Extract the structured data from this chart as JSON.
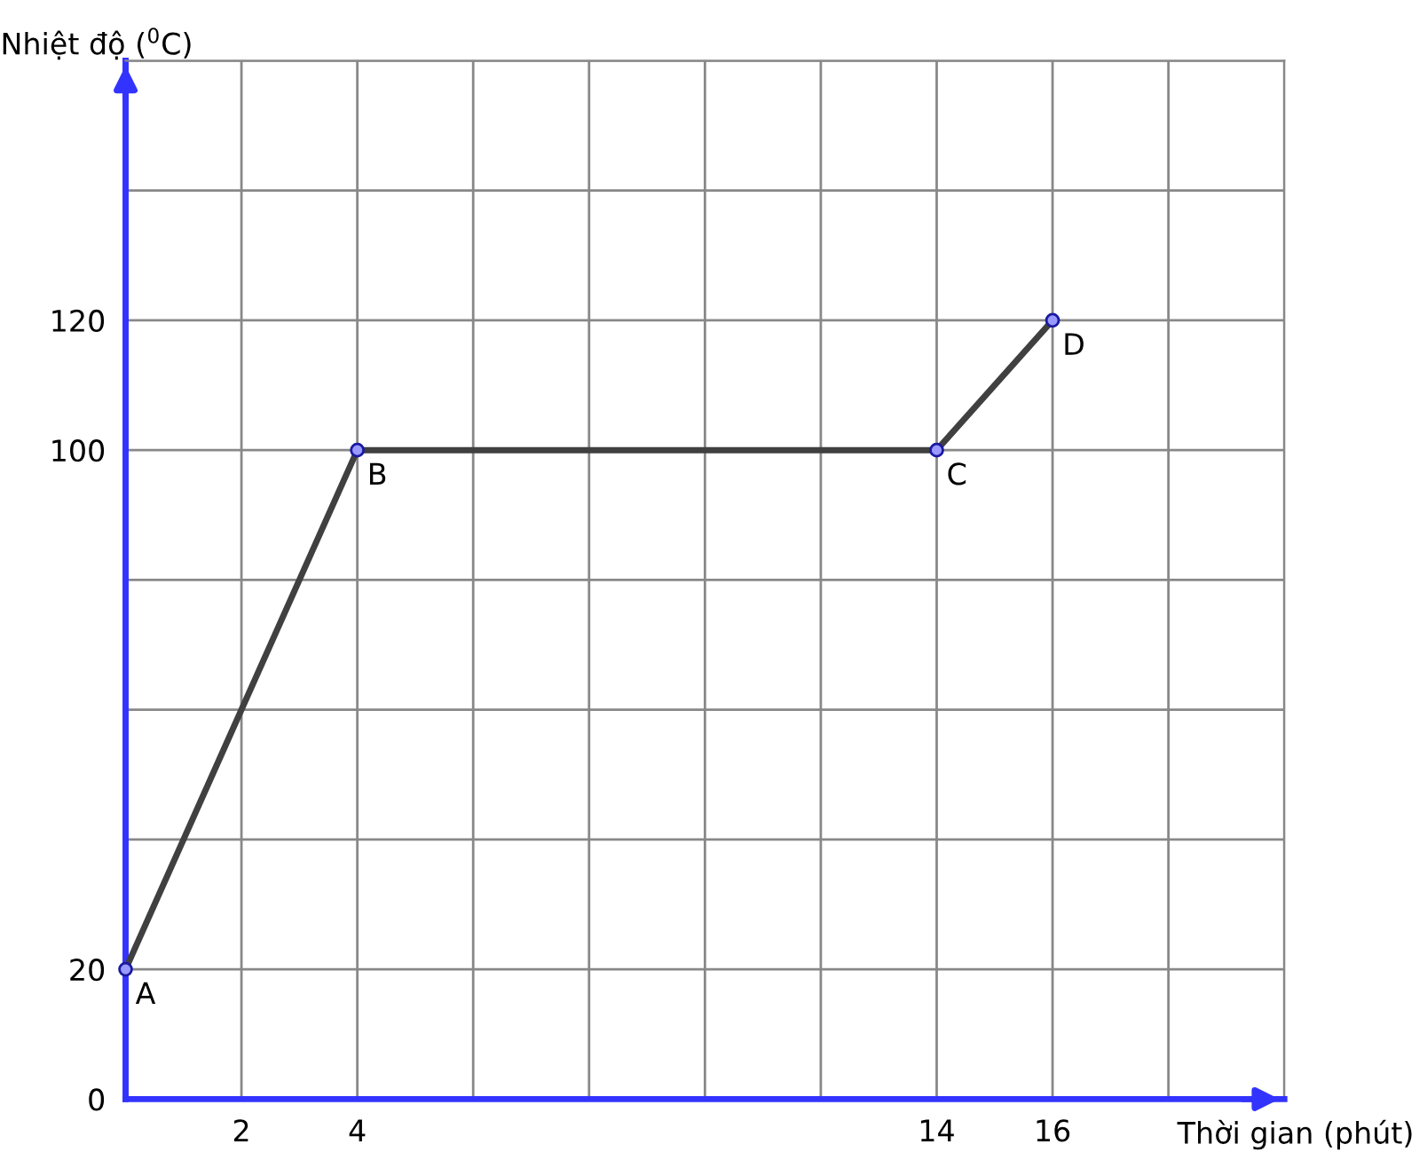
{
  "chart_data": {
    "type": "line",
    "xlabel": "Thời gian (phút)",
    "ylabel": "Nhiệt độ ($^{0}$C)",
    "series": [
      {
        "color": "#404040",
        "x": [
          0,
          4,
          14,
          16
        ],
        "values": [
          20,
          100,
          100,
          120
        ]
      }
    ],
    "xlim": [
      0,
      20
    ],
    "ylim": [
      0,
      160
    ],
    "xticks": [
      {
        "value": 0,
        "label": null
      },
      2,
      4,
      {
        "value": 6,
        "label": null
      },
      {
        "value": 8,
        "label": null
      },
      {
        "value": 10,
        "label": null
      },
      {
        "value": 12,
        "label": null
      },
      14,
      16,
      {
        "value": 18,
        "label": null
      },
      {
        "value": 20,
        "label": null
      }
    ],
    "yticks": [
      0,
      20,
      {
        "value": 40,
        "label": null
      },
      {
        "value": 60,
        "label": null
      },
      {
        "value": 80,
        "label": null
      },
      100,
      120,
      {
        "value": 140,
        "label": null
      },
      {
        "value": 160,
        "label": null
      }
    ],
    "grid": true,
    "marker": "circle",
    "line_style": "solid",
    "annotations": [
      {
        "text": "A",
        "x": 0,
        "y": 20
      },
      {
        "text": "B",
        "x": 4,
        "y": 100
      },
      {
        "text": "C",
        "x": 14,
        "y": 100
      },
      {
        "text": "D",
        "x": 16,
        "y": 120
      }
    ]
  }
}
